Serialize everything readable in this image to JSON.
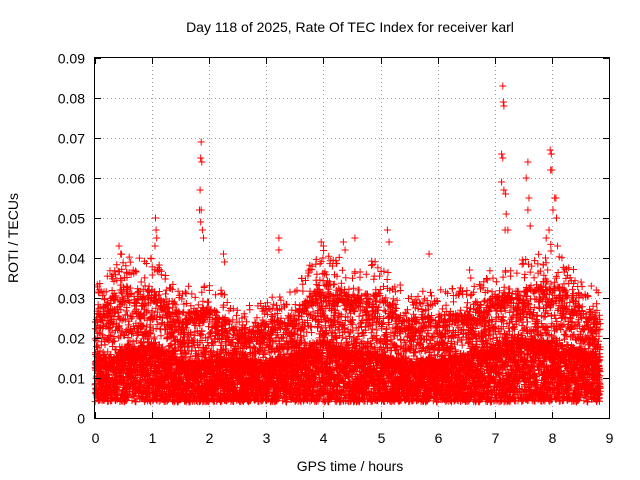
{
  "chart_data": {
    "type": "scatter",
    "title": "Day 118 of 2025, Rate Of TEC Index for receiver karl",
    "xlabel": "GPS time / hours",
    "ylabel": "ROTI / TECUs",
    "xlim": [
      0,
      9
    ],
    "ylim": [
      0,
      0.09
    ],
    "xticks": [
      "0",
      "1",
      "2",
      "3",
      "4",
      "5",
      "6",
      "7",
      "8",
      "9"
    ],
    "yticks": [
      "0",
      "0.01",
      "0.02",
      "0.03",
      "0.04",
      "0.05",
      "0.06",
      "0.07",
      "0.08",
      "0.09"
    ],
    "grid": true,
    "marker": "plus",
    "series_color": "#ff0000",
    "data_extent_hours": [
      0,
      8.85
    ],
    "sampling_interval_hours": 0.0025,
    "baseline_roti": 0.004,
    "envelope": [
      {
        "x": 0.0,
        "typical": 0.012,
        "upper": 0.03
      },
      {
        "x": 0.5,
        "typical": 0.014,
        "upper": 0.038
      },
      {
        "x": 1.0,
        "typical": 0.015,
        "upper": 0.037
      },
      {
        "x": 1.5,
        "typical": 0.012,
        "upper": 0.03
      },
      {
        "x": 2.0,
        "typical": 0.012,
        "upper": 0.032
      },
      {
        "x": 2.5,
        "typical": 0.012,
        "upper": 0.025
      },
      {
        "x": 3.0,
        "typical": 0.012,
        "upper": 0.027
      },
      {
        "x": 3.5,
        "typical": 0.013,
        "upper": 0.03
      },
      {
        "x": 4.0,
        "typical": 0.016,
        "upper": 0.04
      },
      {
        "x": 4.5,
        "typical": 0.014,
        "upper": 0.035
      },
      {
        "x": 5.0,
        "typical": 0.013,
        "upper": 0.036
      },
      {
        "x": 5.5,
        "typical": 0.012,
        "upper": 0.028
      },
      {
        "x": 6.0,
        "typical": 0.012,
        "upper": 0.03
      },
      {
        "x": 6.5,
        "typical": 0.013,
        "upper": 0.03
      },
      {
        "x": 7.0,
        "typical": 0.015,
        "upper": 0.035
      },
      {
        "x": 7.5,
        "typical": 0.016,
        "upper": 0.036
      },
      {
        "x": 8.0,
        "typical": 0.016,
        "upper": 0.04
      },
      {
        "x": 8.5,
        "typical": 0.014,
        "upper": 0.032
      },
      {
        "x": 8.85,
        "typical": 0.013,
        "upper": 0.03
      }
    ],
    "notable_points": [
      {
        "x": 0.42,
        "y": 0.043
      },
      {
        "x": 0.45,
        "y": 0.041
      },
      {
        "x": 1.06,
        "y": 0.05
      },
      {
        "x": 1.07,
        "y": 0.047
      },
      {
        "x": 1.08,
        "y": 0.045
      },
      {
        "x": 1.05,
        "y": 0.043
      },
      {
        "x": 1.86,
        "y": 0.069
      },
      {
        "x": 1.85,
        "y": 0.065
      },
      {
        "x": 1.87,
        "y": 0.064
      },
      {
        "x": 1.84,
        "y": 0.057
      },
      {
        "x": 1.83,
        "y": 0.052
      },
      {
        "x": 1.86,
        "y": 0.052
      },
      {
        "x": 1.85,
        "y": 0.049
      },
      {
        "x": 1.88,
        "y": 0.047
      },
      {
        "x": 1.9,
        "y": 0.045
      },
      {
        "x": 2.25,
        "y": 0.041
      },
      {
        "x": 2.27,
        "y": 0.039
      },
      {
        "x": 3.22,
        "y": 0.045
      },
      {
        "x": 3.22,
        "y": 0.042
      },
      {
        "x": 3.96,
        "y": 0.044
      },
      {
        "x": 4.0,
        "y": 0.043
      },
      {
        "x": 4.35,
        "y": 0.044
      },
      {
        "x": 4.38,
        "y": 0.042
      },
      {
        "x": 4.55,
        "y": 0.045
      },
      {
        "x": 5.12,
        "y": 0.047
      },
      {
        "x": 5.15,
        "y": 0.044
      },
      {
        "x": 5.85,
        "y": 0.041
      },
      {
        "x": 6.56,
        "y": 0.037
      },
      {
        "x": 6.58,
        "y": 0.035
      },
      {
        "x": 7.14,
        "y": 0.083
      },
      {
        "x": 7.15,
        "y": 0.079
      },
      {
        "x": 7.16,
        "y": 0.078
      },
      {
        "x": 7.12,
        "y": 0.066
      },
      {
        "x": 7.14,
        "y": 0.065
      },
      {
        "x": 7.12,
        "y": 0.059
      },
      {
        "x": 7.16,
        "y": 0.057
      },
      {
        "x": 7.19,
        "y": 0.056
      },
      {
        "x": 7.2,
        "y": 0.051
      },
      {
        "x": 7.18,
        "y": 0.047
      },
      {
        "x": 7.23,
        "y": 0.047
      },
      {
        "x": 7.58,
        "y": 0.064
      },
      {
        "x": 7.55,
        "y": 0.06
      },
      {
        "x": 7.6,
        "y": 0.055
      },
      {
        "x": 7.58,
        "y": 0.052
      },
      {
        "x": 7.62,
        "y": 0.048
      },
      {
        "x": 7.97,
        "y": 0.067
      },
      {
        "x": 7.99,
        "y": 0.066
      },
      {
        "x": 7.98,
        "y": 0.062
      },
      {
        "x": 8.0,
        "y": 0.062
      },
      {
        "x": 8.05,
        "y": 0.055
      },
      {
        "x": 8.07,
        "y": 0.055
      },
      {
        "x": 8.02,
        "y": 0.052
      },
      {
        "x": 8.08,
        "y": 0.05
      },
      {
        "x": 7.95,
        "y": 0.047
      },
      {
        "x": 7.9,
        "y": 0.045
      },
      {
        "x": 8.1,
        "y": 0.043
      }
    ]
  }
}
